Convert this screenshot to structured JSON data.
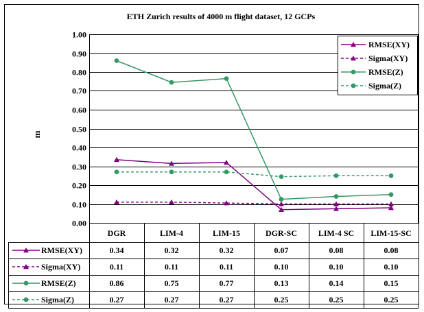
{
  "chart_data": {
    "type": "line",
    "title": "ETH Zurich results of 4000 m flight dataset, 12 GCPs",
    "xlabel": "",
    "ylabel": "m",
    "ylim": [
      0,
      1
    ],
    "ytick_step": 0.1,
    "yticks": [
      "0.00",
      "0.10",
      "0.20",
      "0.30",
      "0.40",
      "0.50",
      "0.60",
      "0.70",
      "0.80",
      "0.90",
      "1.00"
    ],
    "grid": true,
    "legend_position": "top-right",
    "categories": [
      "DGR",
      "LIM-4",
      "LIM-15",
      "DGR-SC",
      "LIM-4 SC",
      "LIM-15-SC"
    ],
    "series": [
      {
        "name": "RMSE(XY)",
        "color": "#800080",
        "dash": "solid",
        "marker": "triangle",
        "values": [
          0.335,
          0.315,
          0.32,
          0.07,
          0.075,
          0.08
        ],
        "table_values": [
          "0.34",
          "0.32",
          "0.32",
          "0.07",
          "0.08",
          "0.08"
        ]
      },
      {
        "name": "Sigma(XY)",
        "color": "#800080",
        "dash": "dashed",
        "marker": "triangle",
        "values": [
          0.11,
          0.11,
          0.105,
          0.1,
          0.1,
          0.1
        ],
        "table_values": [
          "0.11",
          "0.11",
          "0.11",
          "0.10",
          "0.10",
          "0.10"
        ]
      },
      {
        "name": "RMSE(Z)",
        "color": "#339966",
        "dash": "solid",
        "marker": "circle",
        "values": [
          0.86,
          0.745,
          0.765,
          0.125,
          0.14,
          0.15
        ],
        "table_values": [
          "0.86",
          "0.75",
          "0.77",
          "0.13",
          "0.14",
          "0.15"
        ]
      },
      {
        "name": "Sigma(Z)",
        "color": "#339966",
        "dash": "dashed",
        "marker": "circle",
        "values": [
          0.27,
          0.27,
          0.27,
          0.245,
          0.25,
          0.25
        ],
        "table_values": [
          "0.27",
          "0.27",
          "0.27",
          "0.25",
          "0.25",
          "0.25"
        ]
      }
    ]
  }
}
